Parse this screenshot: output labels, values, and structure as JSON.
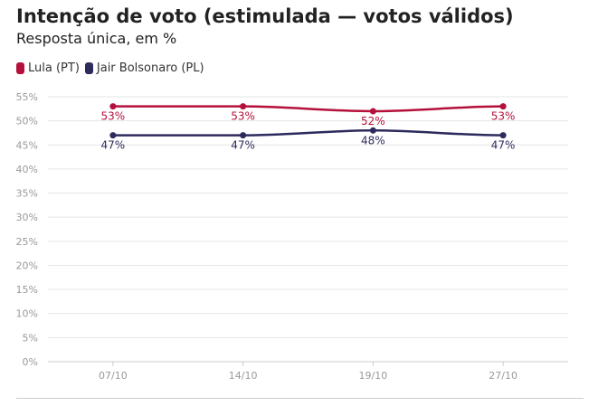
{
  "title": "Intenção de voto (estimulada — votos válidos)",
  "subtitle": "Resposta única, em %",
  "colors": {
    "lula": "#b5103b",
    "bolsonaro": "#2d2a5c",
    "grid": "#e6e6e6",
    "axis_text": "#999999"
  },
  "legend": [
    {
      "label": "Lula (PT)",
      "color": "#b5103b"
    },
    {
      "label": "Jair Bolsonaro (PL)",
      "color": "#2d2a5c"
    }
  ],
  "chart_data": {
    "type": "line",
    "title": "Intenção de voto (estimulada — votos válidos)",
    "subtitle": "Resposta única, em %",
    "categories": [
      "07/10",
      "14/10",
      "19/10",
      "27/10"
    ],
    "series": [
      {
        "name": "Lula (PT)",
        "color": "#b5103b",
        "values": [
          53,
          53,
          52,
          53
        ],
        "labels": [
          "53%",
          "53%",
          "52%",
          "53%"
        ]
      },
      {
        "name": "Jair Bolsonaro (PL)",
        "color": "#2d2a5c",
        "values": [
          47,
          47,
          48,
          47
        ],
        "labels": [
          "47%",
          "47%",
          "48%",
          "47%"
        ]
      }
    ],
    "ylim": [
      0,
      55
    ],
    "yticks": [
      0,
      5,
      10,
      15,
      20,
      25,
      30,
      35,
      40,
      45,
      50,
      55
    ],
    "ytick_labels": [
      "0%",
      "5%",
      "10%",
      "15%",
      "20%",
      "25%",
      "30%",
      "35%",
      "40%",
      "45%",
      "50%",
      "55%"
    ],
    "grid": true,
    "legend_position": "top-left"
  }
}
